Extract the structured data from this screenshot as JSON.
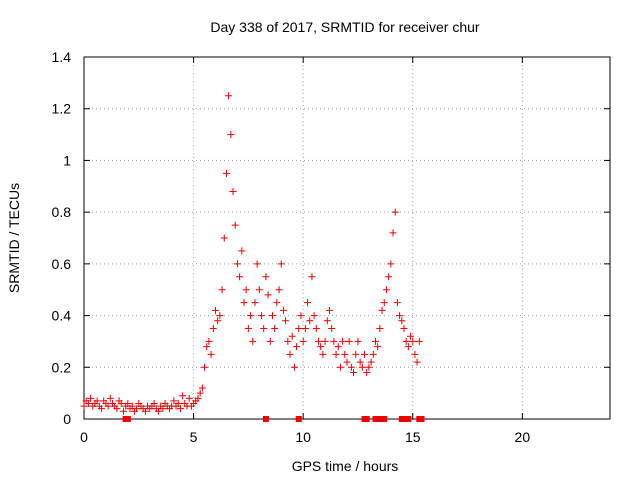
{
  "chart_data": {
    "type": "scatter",
    "title": "Day 338 of 2017, SRMTID for receiver chur",
    "xlabel": "GPS time / hours",
    "ylabel": "SRMTID / TECUs",
    "xlim": [
      0,
      24
    ],
    "ylim": [
      0,
      1.4
    ],
    "xticks": [
      0,
      5,
      10,
      15,
      20
    ],
    "yticks": [
      0,
      0.2,
      0.4,
      0.6,
      0.8,
      1.0,
      1.2,
      1.4
    ],
    "xtick_labels": [
      "0",
      "5",
      "10",
      "15",
      "20"
    ],
    "ytick_labels": [
      "0",
      "0.2",
      "0.4",
      "0.6",
      "0.8",
      "1",
      "1.2",
      "1.4"
    ],
    "grid": true,
    "marker": "+",
    "color": "#ee0000",
    "series": [
      {
        "name": "SRMTID",
        "x": [
          0.0,
          0.1,
          0.2,
          0.3,
          0.4,
          0.5,
          0.6,
          0.7,
          0.8,
          0.9,
          1.0,
          1.1,
          1.2,
          1.3,
          1.4,
          1.5,
          1.6,
          1.7,
          1.8,
          1.9,
          2.0,
          2.1,
          2.2,
          2.3,
          2.4,
          2.5,
          2.6,
          2.7,
          2.8,
          2.9,
          3.0,
          3.1,
          3.2,
          3.3,
          3.4,
          3.5,
          3.6,
          3.7,
          3.8,
          3.9,
          4.0,
          4.1,
          4.2,
          4.3,
          4.4,
          4.5,
          4.6,
          4.7,
          4.8,
          4.9,
          5.0,
          5.1,
          5.2,
          5.3,
          5.4,
          5.5,
          5.6,
          5.7,
          5.8,
          5.9,
          6.0,
          6.1,
          6.2,
          6.3,
          6.4,
          6.5,
          6.6,
          6.7,
          6.8,
          6.9,
          7.0,
          7.1,
          7.2,
          7.3,
          7.4,
          7.5,
          7.6,
          7.7,
          7.8,
          7.9,
          8.0,
          8.1,
          8.2,
          8.3,
          8.4,
          8.5,
          8.6,
          8.7,
          8.8,
          8.9,
          9.0,
          9.1,
          9.2,
          9.3,
          9.4,
          9.5,
          9.6,
          9.7,
          9.8,
          9.9,
          10.0,
          10.1,
          10.2,
          10.3,
          10.4,
          10.5,
          10.6,
          10.7,
          10.8,
          10.9,
          11.0,
          11.1,
          11.2,
          11.3,
          11.4,
          11.5,
          11.6,
          11.7,
          11.8,
          11.9,
          12.0,
          12.1,
          12.2,
          12.3,
          12.4,
          12.5,
          12.6,
          12.7,
          12.8,
          12.9,
          13.0,
          13.1,
          13.2,
          13.3,
          13.4,
          13.5,
          13.6,
          13.7,
          13.8,
          13.9,
          14.0,
          14.1,
          14.2,
          14.3,
          14.4,
          14.5,
          14.6,
          14.7,
          14.8,
          14.9,
          15.0,
          15.1,
          15.2,
          15.3
        ],
        "y": [
          0.05,
          0.07,
          0.06,
          0.08,
          0.05,
          0.06,
          0.07,
          0.05,
          0.04,
          0.07,
          0.06,
          0.05,
          0.08,
          0.06,
          0.05,
          0.04,
          0.07,
          0.06,
          0.03,
          0.05,
          0.06,
          0.04,
          0.05,
          0.03,
          0.04,
          0.06,
          0.05,
          0.04,
          0.03,
          0.05,
          0.04,
          0.05,
          0.06,
          0.04,
          0.03,
          0.05,
          0.04,
          0.06,
          0.05,
          0.04,
          0.05,
          0.07,
          0.05,
          0.06,
          0.04,
          0.09,
          0.06,
          0.05,
          0.08,
          0.05,
          0.06,
          0.07,
          0.08,
          0.1,
          0.12,
          0.2,
          0.28,
          0.3,
          0.25,
          0.35,
          0.42,
          0.38,
          0.4,
          0.5,
          0.7,
          0.95,
          1.25,
          1.1,
          0.88,
          0.75,
          0.6,
          0.55,
          0.65,
          0.45,
          0.5,
          0.35,
          0.4,
          0.3,
          0.45,
          0.6,
          0.5,
          0.4,
          0.35,
          0.55,
          0.48,
          0.3,
          0.4,
          0.35,
          0.45,
          0.5,
          0.6,
          0.42,
          0.38,
          0.3,
          0.25,
          0.32,
          0.2,
          0.28,
          0.35,
          0.4,
          0.3,
          0.35,
          0.45,
          0.38,
          0.55,
          0.4,
          0.35,
          0.3,
          0.28,
          0.25,
          0.3,
          0.38,
          0.42,
          0.35,
          0.3,
          0.25,
          0.28,
          0.2,
          0.3,
          0.25,
          0.22,
          0.3,
          0.2,
          0.18,
          0.25,
          0.3,
          0.22,
          0.2,
          0.25,
          0.18,
          0.2,
          0.22,
          0.25,
          0.3,
          0.28,
          0.35,
          0.42,
          0.45,
          0.5,
          0.55,
          0.6,
          0.72,
          0.8,
          0.45,
          0.4,
          0.38,
          0.35,
          0.3,
          0.28,
          0.32,
          0.3,
          0.25,
          0.22,
          0.3
        ]
      }
    ],
    "flagged_x": [
      8.3,
      9.8,
      12.8,
      12.9,
      13.3,
      13.4,
      13.7,
      14.5,
      14.6,
      14.7,
      14.8,
      15.3,
      15.4,
      1.9,
      2.0,
      13.6
    ]
  }
}
